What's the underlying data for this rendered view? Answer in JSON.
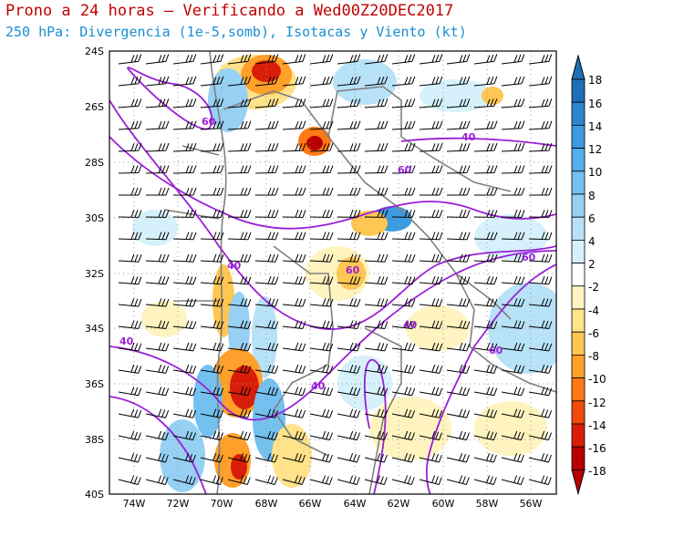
{
  "title": "Prono a 24 horas – Verificando a Wed00Z20DEC2017",
  "subtitle": "250 hPa: Divergencia (1e-5,somb), Isotacas y Viento (kt)",
  "lat_labels": [
    "24S",
    "26S",
    "28S",
    "30S",
    "32S",
    "34S",
    "36S",
    "38S",
    "40S"
  ],
  "lon_labels": [
    "74W",
    "72W",
    "70W",
    "68W",
    "66W",
    "64W",
    "62W",
    "60W",
    "58W",
    "56W"
  ],
  "colorbar": {
    "labels": [
      "18",
      "16",
      "14",
      "12",
      "10",
      "8",
      "6",
      "4",
      "2",
      "-2",
      "-4",
      "-6",
      "-8",
      "-10",
      "-12",
      "-14",
      "-16",
      "-18"
    ],
    "colors": [
      "#1e6fb5",
      "#2b86cc",
      "#3c9be0",
      "#55aee8",
      "#74c0ef",
      "#96d1f4",
      "#b8e2f8",
      "#d6f1fb",
      "#ffffff",
      "#fff4c0",
      "#ffe28a",
      "#ffc652",
      "#ffa02a",
      "#ff7a14",
      "#f04a0c",
      "#d81e08",
      "#b80000"
    ]
  },
  "isotach_labels": [
    "60",
    "40",
    "60",
    "40",
    "60",
    "60",
    "40",
    "40",
    "60",
    "40"
  ],
  "colors": {
    "title": "#c00000",
    "subtitle": "#1a8fd1",
    "isotach": "#9a1fd6",
    "borders": "#808080"
  }
}
